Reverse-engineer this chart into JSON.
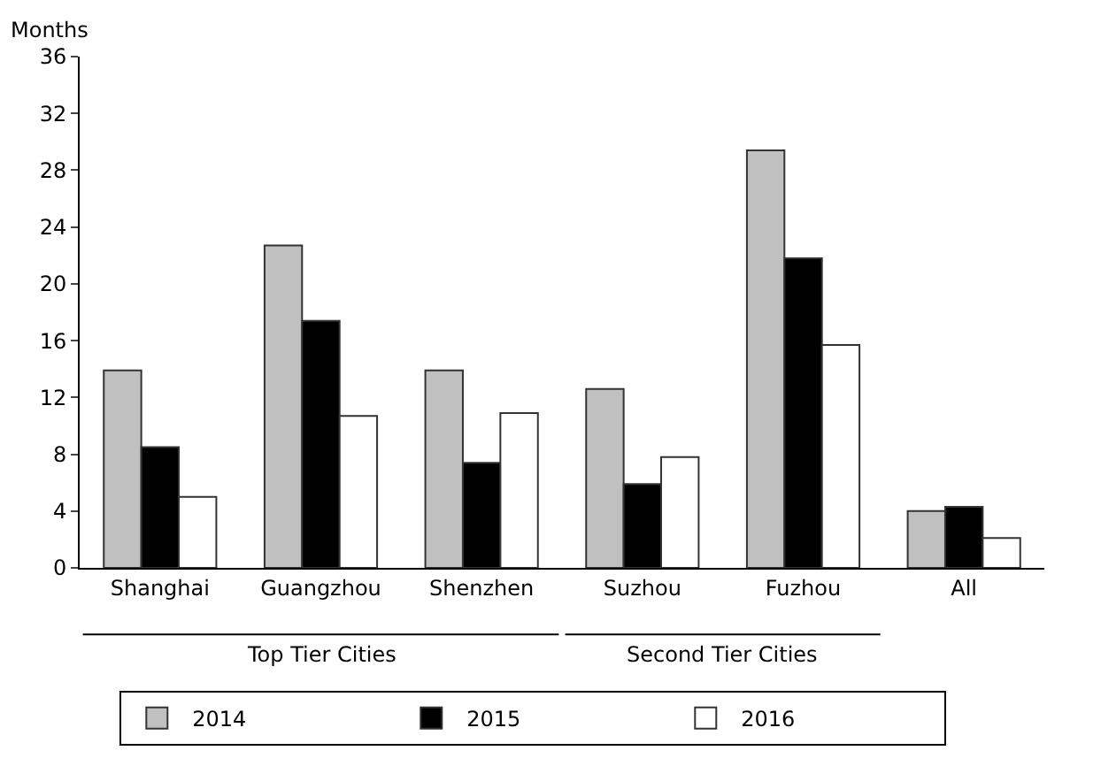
{
  "chart_data": {
    "type": "bar",
    "ylabel": "Months",
    "categories": [
      "Shanghai",
      "Guangzhou",
      "Shenzhen",
      "Suzhou",
      "Fuzhou",
      "All"
    ],
    "series": [
      {
        "name": "2014",
        "color": "#c0c0c0",
        "values": [
          13.9,
          22.7,
          13.9,
          12.6,
          29.4,
          4.0
        ]
      },
      {
        "name": "2015",
        "color": "#000000",
        "values": [
          8.5,
          17.4,
          7.4,
          5.9,
          21.8,
          4.3
        ]
      },
      {
        "name": "2016",
        "color": "#ffffff",
        "values": [
          5.0,
          10.7,
          10.9,
          7.8,
          15.7,
          2.1
        ]
      }
    ],
    "ylim": [
      0,
      36
    ],
    "yticks": [
      0,
      4,
      8,
      12,
      16,
      20,
      24,
      28,
      32,
      36
    ],
    "grid": false,
    "legend": "bottom",
    "annotations": [
      "Top Tier Cities",
      "Second Tier Cities"
    ]
  }
}
